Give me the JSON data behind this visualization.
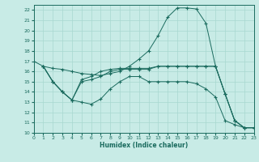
{
  "xlabel": "Humidex (Indice chaleur)",
  "xlim": [
    0,
    23
  ],
  "ylim": [
    10,
    22.5
  ],
  "yticks": [
    10,
    11,
    12,
    13,
    14,
    15,
    16,
    17,
    18,
    19,
    20,
    21,
    22
  ],
  "xticks": [
    0,
    1,
    2,
    3,
    4,
    5,
    6,
    7,
    8,
    9,
    10,
    11,
    12,
    13,
    14,
    15,
    16,
    17,
    18,
    19,
    20,
    21,
    22,
    23
  ],
  "bg_color": "#c8ebe6",
  "line_color": "#1a6b5e",
  "grid_color": "#a8d8d0",
  "c1x": [
    0,
    1,
    2,
    3,
    4,
    5,
    6,
    7,
    8,
    9,
    10,
    11,
    12,
    13,
    14,
    15,
    16,
    17,
    18,
    19,
    20,
    21,
    22,
    23
  ],
  "c1y": [
    17.0,
    16.5,
    16.3,
    16.2,
    16.0,
    15.8,
    15.7,
    15.6,
    15.8,
    16.0,
    16.5,
    17.2,
    18.0,
    19.5,
    21.3,
    22.2,
    22.2,
    22.1,
    20.7,
    16.5,
    13.8,
    11.2,
    10.5,
    10.5
  ],
  "c2x": [
    1,
    2,
    3,
    4,
    5,
    6,
    7,
    8,
    9,
    10,
    11,
    12,
    13,
    14,
    15,
    16,
    17,
    18,
    19,
    20,
    21,
    22,
    23
  ],
  "c2y": [
    16.5,
    15.0,
    14.0,
    13.2,
    13.0,
    12.8,
    13.3,
    14.3,
    15.0,
    15.5,
    15.5,
    15.0,
    15.0,
    15.0,
    15.0,
    15.0,
    14.8,
    14.3,
    13.5,
    11.2,
    10.8,
    10.5,
    10.5
  ],
  "c3x": [
    1,
    2,
    3,
    4,
    5,
    6,
    7,
    8,
    9,
    10,
    11,
    12,
    13,
    14,
    15,
    16,
    17,
    18,
    19,
    20,
    21,
    22,
    23
  ],
  "c3y": [
    16.5,
    15.0,
    14.0,
    13.2,
    15.0,
    15.2,
    15.5,
    16.0,
    16.2,
    16.2,
    16.2,
    16.2,
    16.5,
    16.5,
    16.5,
    16.5,
    16.5,
    16.5,
    16.5,
    13.8,
    11.2,
    10.5,
    10.5
  ],
  "c4x": [
    1,
    2,
    3,
    4,
    5,
    6,
    7,
    8,
    9,
    10,
    11,
    12,
    13,
    14,
    15,
    16,
    17,
    18,
    19,
    20,
    21,
    22,
    23
  ],
  "c4y": [
    16.5,
    15.0,
    14.0,
    13.2,
    15.2,
    15.5,
    16.0,
    16.2,
    16.3,
    16.3,
    16.3,
    16.3,
    16.5,
    16.5,
    16.5,
    16.5,
    16.5,
    16.5,
    16.5,
    13.8,
    11.2,
    10.5,
    10.5
  ]
}
